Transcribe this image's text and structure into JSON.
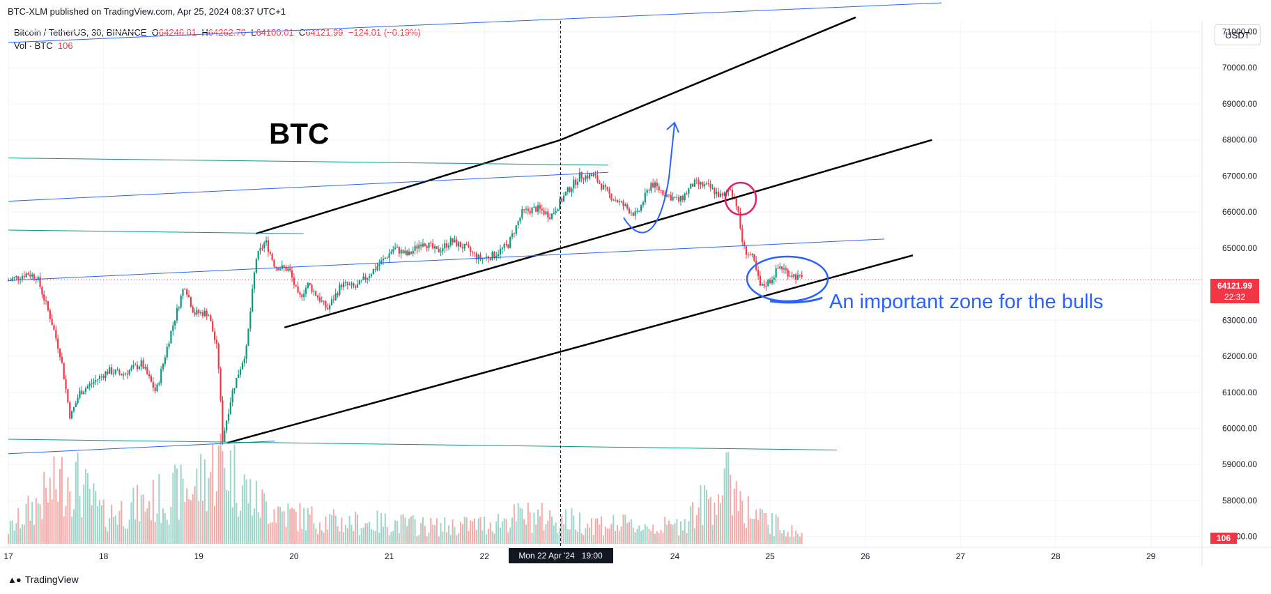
{
  "header": {
    "published": "BTC-XLM published on TradingView.com, Apr 25, 2024 08:37 UTC+1"
  },
  "legend": {
    "symbol": "Bitcoin / TetherUS, 30, BINANCE",
    "o_label": "O",
    "o": "64246.01",
    "h_label": "H",
    "h": "64262.70",
    "l_label": "L",
    "l": "64100.01",
    "c_label": "C",
    "c": "64121.99",
    "change": "−124.01 (−0.19%)",
    "vol_label": "Vol · BTC",
    "vol_value": "106"
  },
  "currency_button": "USDT",
  "footer": {
    "brand": "TradingView"
  },
  "annotations": {
    "title": "BTC",
    "note": "An important zone for the bulls"
  },
  "price_badge": {
    "value": "64121.99",
    "countdown": "22:32"
  },
  "volume_badge": "106",
  "crosshair_label": "Mon 22 Apr '24   19:00",
  "colors": {
    "up": "#089981",
    "down": "#f23645",
    "annotation_blue": "#2962ff",
    "annotation_pink": "#e91e63"
  },
  "chart_data": {
    "type": "line",
    "y_axis_labels": [
      "71000.00",
      "70000.00",
      "69000.00",
      "68000.00",
      "67000.00",
      "66000.00",
      "65000.00",
      "64000.00",
      "63000.00",
      "62000.00",
      "61000.00",
      "60000.00",
      "59000.00",
      "58000.00",
      "57000.00"
    ],
    "x_axis_labels": [
      "17",
      "18",
      "19",
      "20",
      "21",
      "22",
      "24",
      "25",
      "26",
      "27",
      "28",
      "29"
    ],
    "ylim": [
      56800,
      71300
    ],
    "x_day_range": [
      17.0,
      29.5
    ],
    "price_path": [
      {
        "d": 17.0,
        "p": 64100
      },
      {
        "d": 17.2,
        "p": 64300
      },
      {
        "d": 17.3,
        "p": 64200
      },
      {
        "d": 17.45,
        "p": 63000
      },
      {
        "d": 17.55,
        "p": 62000
      },
      {
        "d": 17.65,
        "p": 60300
      },
      {
        "d": 17.75,
        "p": 61000
      },
      {
        "d": 17.9,
        "p": 61300
      },
      {
        "d": 18.05,
        "p": 61600
      },
      {
        "d": 18.2,
        "p": 61500
      },
      {
        "d": 18.4,
        "p": 61800
      },
      {
        "d": 18.55,
        "p": 61000
      },
      {
        "d": 18.7,
        "p": 62600
      },
      {
        "d": 18.85,
        "p": 64000
      },
      {
        "d": 18.95,
        "p": 63200
      },
      {
        "d": 19.1,
        "p": 63200
      },
      {
        "d": 19.2,
        "p": 62100
      },
      {
        "d": 19.25,
        "p": 59700
      },
      {
        "d": 19.35,
        "p": 61000
      },
      {
        "d": 19.5,
        "p": 62200
      },
      {
        "d": 19.6,
        "p": 64700
      },
      {
        "d": 19.7,
        "p": 65200
      },
      {
        "d": 19.8,
        "p": 64500
      },
      {
        "d": 19.95,
        "p": 64400
      },
      {
        "d": 20.05,
        "p": 63600
      },
      {
        "d": 20.15,
        "p": 64000
      },
      {
        "d": 20.35,
        "p": 63300
      },
      {
        "d": 20.5,
        "p": 64000
      },
      {
        "d": 20.65,
        "p": 63900
      },
      {
        "d": 20.8,
        "p": 64300
      },
      {
        "d": 20.95,
        "p": 64700
      },
      {
        "d": 21.05,
        "p": 65000
      },
      {
        "d": 21.2,
        "p": 64800
      },
      {
        "d": 21.35,
        "p": 65200
      },
      {
        "d": 21.5,
        "p": 64900
      },
      {
        "d": 21.65,
        "p": 65200
      },
      {
        "d": 21.8,
        "p": 65000
      },
      {
        "d": 21.95,
        "p": 64700
      },
      {
        "d": 22.1,
        "p": 64800
      },
      {
        "d": 22.25,
        "p": 65100
      },
      {
        "d": 22.4,
        "p": 66000
      },
      {
        "d": 22.55,
        "p": 66100
      },
      {
        "d": 22.7,
        "p": 65900
      },
      {
        "d": 22.85,
        "p": 66500
      },
      {
        "d": 23.0,
        "p": 67000
      },
      {
        "d": 23.15,
        "p": 67000
      },
      {
        "d": 23.3,
        "p": 66500
      },
      {
        "d": 23.45,
        "p": 66200
      },
      {
        "d": 23.6,
        "p": 65900
      },
      {
        "d": 23.75,
        "p": 66800
      },
      {
        "d": 23.9,
        "p": 66500
      },
      {
        "d": 24.05,
        "p": 66300
      },
      {
        "d": 24.2,
        "p": 66800
      },
      {
        "d": 24.35,
        "p": 66700
      },
      {
        "d": 24.5,
        "p": 66400
      },
      {
        "d": 24.58,
        "p": 66700
      },
      {
        "d": 24.65,
        "p": 66200
      },
      {
        "d": 24.72,
        "p": 65000
      },
      {
        "d": 24.82,
        "p": 64700
      },
      {
        "d": 24.9,
        "p": 63900
      },
      {
        "d": 25.0,
        "p": 64100
      },
      {
        "d": 25.1,
        "p": 64500
      },
      {
        "d": 25.2,
        "p": 64300
      },
      {
        "d": 25.35,
        "p": 64121.99
      }
    ],
    "volume_path": [
      {
        "d": 17.0,
        "v": 1
      },
      {
        "d": 17.65,
        "v": 5
      },
      {
        "d": 18.0,
        "v": 2
      },
      {
        "d": 18.5,
        "v": 3
      },
      {
        "d": 18.95,
        "v": 4
      },
      {
        "d": 19.25,
        "v": 6
      },
      {
        "d": 19.6,
        "v": 3
      },
      {
        "d": 20.0,
        "v": 2
      },
      {
        "d": 20.5,
        "v": 1.5
      },
      {
        "d": 21.0,
        "v": 1.5
      },
      {
        "d": 21.5,
        "v": 1.2
      },
      {
        "d": 22.0,
        "v": 1.4
      },
      {
        "d": 22.4,
        "v": 2
      },
      {
        "d": 23.0,
        "v": 1.6
      },
      {
        "d": 23.5,
        "v": 1.3
      },
      {
        "d": 24.0,
        "v": 1.2
      },
      {
        "d": 24.6,
        "v": 4.5
      },
      {
        "d": 24.8,
        "v": 2
      },
      {
        "d": 25.35,
        "v": 0.6
      }
    ],
    "trendlines": [
      {
        "name": "channel-upper",
        "style": "black",
        "points": [
          {
            "d": 19.6,
            "p": 65400
          },
          {
            "d": 22.8,
            "p": 68000
          },
          {
            "d": 25.9,
            "p": 71400
          }
        ]
      },
      {
        "name": "channel-middle",
        "style": "black",
        "points": [
          {
            "d": 19.9,
            "p": 62800
          },
          {
            "d": 23.6,
            "p": 65600
          },
          {
            "d": 26.7,
            "p": 68000
          }
        ]
      },
      {
        "name": "channel-lower",
        "style": "black",
        "points": [
          {
            "d": 19.3,
            "p": 59600
          },
          {
            "d": 26.5,
            "p": 64800
          }
        ]
      },
      {
        "name": "blue-line-top",
        "style": "blue",
        "points": [
          {
            "d": 17.0,
            "p": 70700
          },
          {
            "d": 26.8,
            "p": 71800
          }
        ]
      },
      {
        "name": "blue-line-2",
        "style": "blue",
        "points": [
          {
            "d": 17.0,
            "p": 66300
          },
          {
            "d": 23.3,
            "p": 67100
          }
        ]
      },
      {
        "name": "blue-line-3",
        "style": "blue",
        "points": [
          {
            "d": 17.0,
            "p": 64100
          },
          {
            "d": 26.2,
            "p": 65250
          }
        ]
      },
      {
        "name": "blue-line-low",
        "style": "blue",
        "points": [
          {
            "d": 17.0,
            "p": 59300
          },
          {
            "d": 19.8,
            "p": 59650
          }
        ]
      },
      {
        "name": "green-line-1",
        "style": "green",
        "points": [
          {
            "d": 17.0,
            "p": 67500
          },
          {
            "d": 23.3,
            "p": 67300
          }
        ]
      },
      {
        "name": "green-line-2",
        "style": "green",
        "points": [
          {
            "d": 17.0,
            "p": 65500
          },
          {
            "d": 20.1,
            "p": 65400
          }
        ]
      },
      {
        "name": "green-line-3",
        "style": "green",
        "points": [
          {
            "d": 17.0,
            "p": 59700
          },
          {
            "d": 25.7,
            "p": 59400
          }
        ]
      }
    ],
    "crosshair_day": 22.8,
    "last_price": 64121.99
  }
}
